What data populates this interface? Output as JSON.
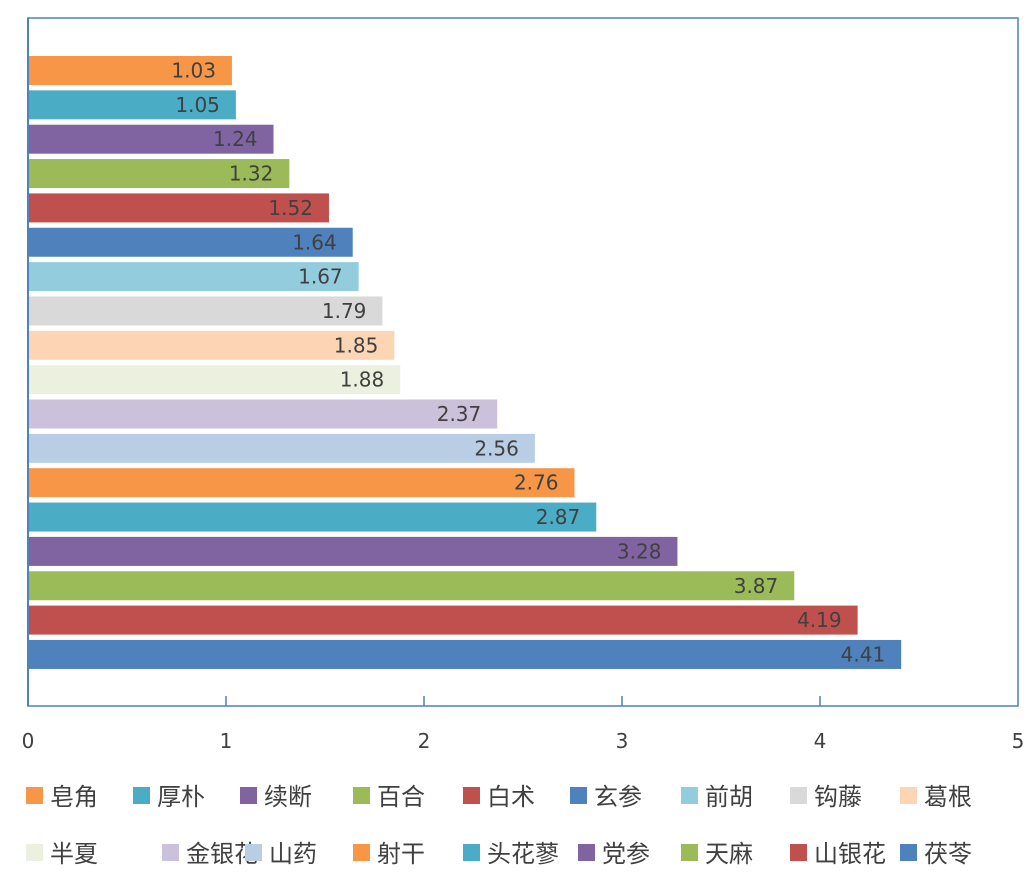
{
  "chart_data": {
    "type": "bar",
    "orientation": "horizontal",
    "title": "",
    "xlabel": "",
    "ylabel": "",
    "xlim": [
      0,
      5
    ],
    "x_ticks": [
      "0",
      "1",
      "2",
      "3",
      "4",
      "5"
    ],
    "grid": false,
    "legend_position": "bottom",
    "series": [
      {
        "name": "皂角",
        "value": 1.03,
        "label": "1.03",
        "color": "#F79646"
      },
      {
        "name": "厚朴",
        "value": 1.05,
        "label": "1.05",
        "color": "#4BACC6"
      },
      {
        "name": "续断",
        "value": 1.24,
        "label": "1.24",
        "color": "#8064A2"
      },
      {
        "name": "百合",
        "value": 1.32,
        "label": "1.32",
        "color": "#9BBB59"
      },
      {
        "name": "白术",
        "value": 1.52,
        "label": "1.52",
        "color": "#C0504D"
      },
      {
        "name": "玄参",
        "value": 1.64,
        "label": "1.64",
        "color": "#4F81BD"
      },
      {
        "name": "前胡",
        "value": 1.67,
        "label": "1.67",
        "color": "#93CDDD"
      },
      {
        "name": "钩藤",
        "value": 1.79,
        "label": "1.79",
        "color": "#D9D9D9"
      },
      {
        "name": "葛根",
        "value": 1.85,
        "label": "1.85",
        "color": "#FCD5B5"
      },
      {
        "name": "半夏",
        "value": 1.88,
        "label": "1.88",
        "color": "#EBF1DE"
      },
      {
        "name": "金银花",
        "value": 2.37,
        "label": "2.37",
        "color": "#CCC1DA"
      },
      {
        "name": "山药",
        "value": 2.56,
        "label": "2.56",
        "color": "#B9CDE5"
      },
      {
        "name": "射干",
        "value": 2.76,
        "label": "2.76",
        "color": "#F79646"
      },
      {
        "name": "头花蓼",
        "value": 2.87,
        "label": "2.87",
        "color": "#4BACC6"
      },
      {
        "name": "党参",
        "value": 3.28,
        "label": "3.28",
        "color": "#8064A2"
      },
      {
        "name": "天麻",
        "value": 3.87,
        "label": "3.87",
        "color": "#9BBB59"
      },
      {
        "name": "山银花",
        "value": 4.19,
        "label": "4.19",
        "color": "#C0504D"
      },
      {
        "name": "茯苓",
        "value": 4.41,
        "label": "4.41",
        "color": "#4F81BD"
      }
    ]
  }
}
